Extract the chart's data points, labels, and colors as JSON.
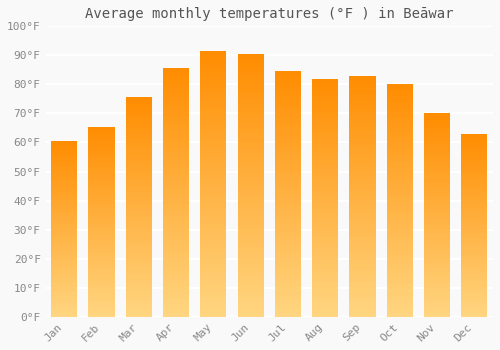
{
  "title": "Average monthly temperatures (°F ) in Beāwar",
  "months": [
    "Jan",
    "Feb",
    "Mar",
    "Apr",
    "May",
    "Jun",
    "Jul",
    "Aug",
    "Sep",
    "Oct",
    "Nov",
    "Dec"
  ],
  "values": [
    60.5,
    65.5,
    75.5,
    85.5,
    91.5,
    90.5,
    84.5,
    82.0,
    83.0,
    80.0,
    70.0,
    63.0
  ],
  "ylim": [
    0,
    100
  ],
  "yticks": [
    0,
    10,
    20,
    30,
    40,
    50,
    60,
    70,
    80,
    90,
    100
  ],
  "ytick_labels": [
    "0°F",
    "10°F",
    "20°F",
    "30°F",
    "40°F",
    "50°F",
    "60°F",
    "70°F",
    "80°F",
    "90°F",
    "100°F"
  ],
  "background_color": "#f9f9f9",
  "grid_color": "#ffffff",
  "bar_color": "#FFA500",
  "bar_top_color": "#FF8C00",
  "bar_bottom_color": "#FFD580",
  "title_fontsize": 10,
  "tick_fontsize": 8,
  "bar_width": 0.7,
  "figsize": [
    5.0,
    3.5
  ],
  "dpi": 100
}
